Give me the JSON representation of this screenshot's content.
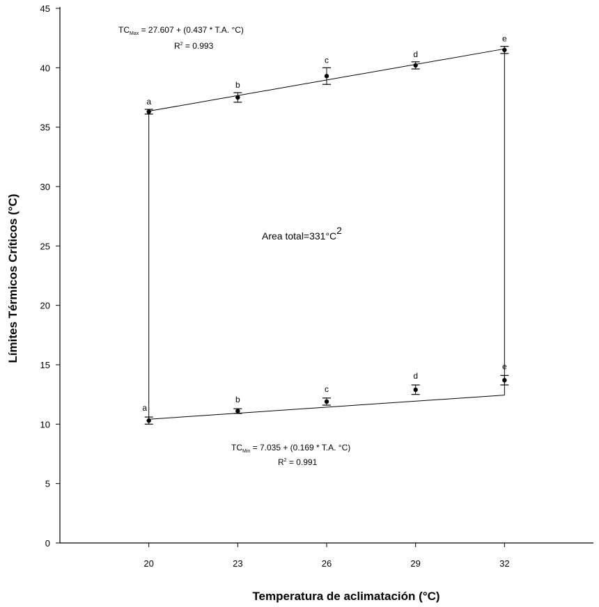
{
  "chart_data": {
    "type": "scatter",
    "xlabel": "Temperatura de aclimatación (°C)",
    "ylabel": "Límites Térmicos Críticos (°C)",
    "xlim": [
      17,
      35
    ],
    "ylim": [
      0,
      45
    ],
    "x_ticks": [
      20,
      23,
      26,
      29,
      32
    ],
    "y_ticks": [
      0,
      5,
      10,
      15,
      20,
      25,
      30,
      35,
      40,
      45
    ],
    "series": [
      {
        "name": "CTmax",
        "x": [
          20,
          23,
          26,
          29,
          32
        ],
        "values": [
          36.3,
          37.5,
          39.3,
          40.2,
          41.5
        ],
        "error": [
          0.2,
          0.4,
          0.7,
          0.3,
          0.3
        ],
        "letters": [
          "a",
          "b",
          "c",
          "d",
          "e"
        ],
        "fit": {
          "intercept": 27.607,
          "slope": 0.437
        },
        "equation": {
          "prefix": "TC",
          "sub": "Max",
          "rest": " = 27.607 + (0.437 * T.A. °C)"
        },
        "r2": {
          "base": "R",
          "exp": "2",
          "value": " = 0.993"
        }
      },
      {
        "name": "CTmin",
        "x": [
          20,
          23,
          26,
          29,
          32
        ],
        "values": [
          10.3,
          11.1,
          11.9,
          12.9,
          13.7
        ],
        "error": [
          0.3,
          0.2,
          0.3,
          0.4,
          0.4
        ],
        "letters": [
          "a",
          "b",
          "c",
          "d",
          "e"
        ],
        "fit": {
          "intercept": 7.035,
          "slope": 0.169
        },
        "equation": {
          "prefix": "TC",
          "sub": "Min",
          "rest": " = 7.035 + (0.169 * T.A. °C)"
        },
        "r2": {
          "base": "R",
          "exp": "2",
          "value": " = 0.991"
        }
      }
    ],
    "area_label": {
      "text": "Area total=331°C",
      "exp": "2"
    }
  }
}
